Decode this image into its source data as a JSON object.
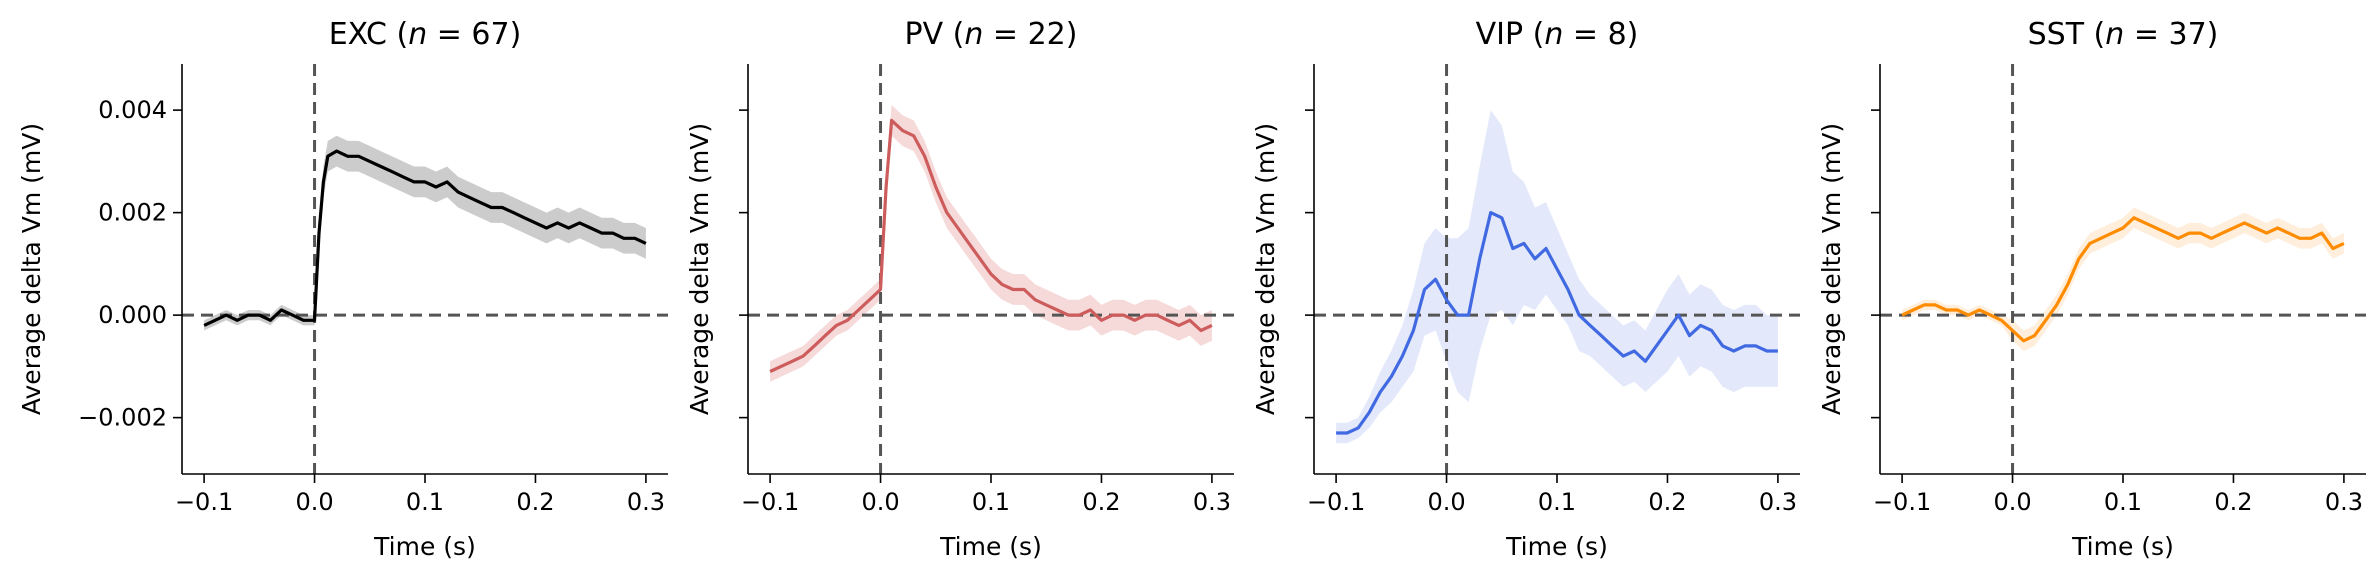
{
  "chart_data": [
    {
      "type": "line",
      "title_main": "EXC (",
      "title_n": "n",
      "title_rest": " = 67)",
      "xlabel": "Time (s)",
      "ylabel": "Average delta Vm (mV)",
      "xlim": [
        -0.12,
        0.32
      ],
      "ylim": [
        -0.0031,
        0.0049
      ],
      "xticks": [
        -0.1,
        0.0,
        0.1,
        0.2,
        0.3
      ],
      "xtick_labels": [
        "−0.1",
        "0.0",
        "0.1",
        "0.2",
        "0.3"
      ],
      "yticks": [
        -0.002,
        0.0,
        0.002,
        0.004
      ],
      "ytick_labels": [
        "−0.002",
        "0.000",
        "0.002",
        "0.004"
      ],
      "color": "#000000",
      "band_color": "#cccccc",
      "series": [
        {
          "x": [
            -0.1,
            -0.09,
            -0.08,
            -0.07,
            -0.06,
            -0.05,
            -0.04,
            -0.03,
            -0.02,
            -0.01,
            0.0,
            0.004,
            0.008,
            0.012,
            0.02,
            0.03,
            0.04,
            0.05,
            0.06,
            0.07,
            0.08,
            0.09,
            0.1,
            0.11,
            0.12,
            0.13,
            0.14,
            0.15,
            0.16,
            0.17,
            0.18,
            0.19,
            0.2,
            0.21,
            0.22,
            0.23,
            0.24,
            0.25,
            0.26,
            0.27,
            0.28,
            0.29,
            0.3
          ],
          "y": [
            -0.0002,
            -0.0001,
            0.0,
            -0.0001,
            0.0,
            0.0,
            -0.0001,
            0.0001,
            0.0,
            -0.0001,
            -0.0001,
            0.0016,
            0.0026,
            0.0031,
            0.0032,
            0.0031,
            0.0031,
            0.003,
            0.0029,
            0.0028,
            0.0027,
            0.0026,
            0.0026,
            0.0025,
            0.0026,
            0.0024,
            0.0023,
            0.0022,
            0.0021,
            0.0021,
            0.002,
            0.0019,
            0.0018,
            0.0017,
            0.0018,
            0.0017,
            0.0018,
            0.0017,
            0.0016,
            0.0016,
            0.0015,
            0.0015,
            0.0014
          ],
          "err": [
            0.0001,
            0.0001,
            0.0001,
            0.0001,
            0.0001,
            0.0001,
            0.0001,
            0.0001,
            0.0001,
            0.0001,
            0.0001,
            0.0002,
            0.0003,
            0.0003,
            0.0003,
            0.0003,
            0.0003,
            0.0003,
            0.0003,
            0.0003,
            0.0003,
            0.0003,
            0.0003,
            0.0003,
            0.0003,
            0.0003,
            0.0003,
            0.0003,
            0.0003,
            0.0003,
            0.0003,
            0.0003,
            0.0003,
            0.0003,
            0.0003,
            0.0003,
            0.0003,
            0.0003,
            0.0003,
            0.0003,
            0.0003,
            0.0003,
            0.0003
          ]
        }
      ]
    },
    {
      "type": "line",
      "title_main": "PV (",
      "title_n": "n",
      "title_rest": " = 22)",
      "xlabel": "Time (s)",
      "ylabel": "Average delta Vm (mV)",
      "xlim": [
        -0.12,
        0.32
      ],
      "ylim": [
        -0.0031,
        0.0049
      ],
      "xticks": [
        -0.1,
        0.0,
        0.1,
        0.2,
        0.3
      ],
      "xtick_labels": [
        "−0.1",
        "0.0",
        "0.1",
        "0.2",
        "0.3"
      ],
      "yticks": [
        -0.002,
        0.0,
        0.002,
        0.004
      ],
      "ytick_labels": [
        "",
        "",
        "",
        ""
      ],
      "color": "#cd5c5c",
      "band_color": "#f6d9d9",
      "series": [
        {
          "x": [
            -0.1,
            -0.09,
            -0.08,
            -0.07,
            -0.06,
            -0.05,
            -0.04,
            -0.03,
            -0.02,
            -0.01,
            0.0,
            0.005,
            0.01,
            0.02,
            0.03,
            0.04,
            0.05,
            0.06,
            0.07,
            0.08,
            0.09,
            0.1,
            0.11,
            0.12,
            0.13,
            0.14,
            0.15,
            0.16,
            0.17,
            0.18,
            0.19,
            0.2,
            0.21,
            0.22,
            0.23,
            0.24,
            0.25,
            0.26,
            0.27,
            0.28,
            0.29,
            0.3
          ],
          "y": [
            -0.0011,
            -0.001,
            -0.0009,
            -0.0008,
            -0.0006,
            -0.0004,
            -0.0002,
            -0.0001,
            0.0001,
            0.0003,
            0.0005,
            0.0025,
            0.0038,
            0.0036,
            0.0035,
            0.0031,
            0.0025,
            0.002,
            0.0017,
            0.0014,
            0.0011,
            0.0008,
            0.0006,
            0.0005,
            0.0005,
            0.0003,
            0.0002,
            0.0001,
            0.0,
            0.0,
            0.0001,
            -0.0001,
            0.0,
            0.0,
            -0.0001,
            0.0,
            0.0,
            -0.0001,
            -0.0002,
            -0.0001,
            -0.0003,
            -0.0002
          ],
          "err": [
            0.0002,
            0.0002,
            0.0002,
            0.0002,
            0.0002,
            0.0002,
            0.0002,
            0.0002,
            0.0002,
            0.0002,
            0.0002,
            0.0003,
            0.0003,
            0.0003,
            0.0003,
            0.0003,
            0.0003,
            0.0003,
            0.0003,
            0.0003,
            0.0003,
            0.0003,
            0.0003,
            0.0003,
            0.0003,
            0.0003,
            0.0003,
            0.0003,
            0.0003,
            0.0003,
            0.0003,
            0.0003,
            0.0003,
            0.0003,
            0.0003,
            0.0003,
            0.0003,
            0.0003,
            0.0003,
            0.0003,
            0.0003,
            0.0003
          ]
        }
      ]
    },
    {
      "type": "line",
      "title_main": "VIP (",
      "title_n": "n",
      "title_rest": " = 8)",
      "xlabel": "Time (s)",
      "ylabel": "Average delta Vm (mV)",
      "xlim": [
        -0.12,
        0.32
      ],
      "ylim": [
        -0.0031,
        0.0049
      ],
      "xticks": [
        -0.1,
        0.0,
        0.1,
        0.2,
        0.3
      ],
      "xtick_labels": [
        "−0.1",
        "0.0",
        "0.1",
        "0.2",
        "0.3"
      ],
      "yticks": [
        -0.002,
        0.0,
        0.002,
        0.004
      ],
      "ytick_labels": [
        "",
        "",
        "",
        ""
      ],
      "color": "#4169e1",
      "band_color": "#e3e9fb",
      "series": [
        {
          "x": [
            -0.1,
            -0.09,
            -0.08,
            -0.07,
            -0.06,
            -0.05,
            -0.04,
            -0.03,
            -0.02,
            -0.01,
            0.0,
            0.01,
            0.02,
            0.03,
            0.04,
            0.05,
            0.06,
            0.07,
            0.08,
            0.09,
            0.1,
            0.11,
            0.12,
            0.13,
            0.14,
            0.15,
            0.16,
            0.17,
            0.18,
            0.19,
            0.2,
            0.21,
            0.22,
            0.23,
            0.24,
            0.25,
            0.26,
            0.27,
            0.28,
            0.29,
            0.3
          ],
          "y": [
            -0.0023,
            -0.0023,
            -0.0022,
            -0.0019,
            -0.0015,
            -0.0012,
            -0.0008,
            -0.0003,
            0.0005,
            0.0007,
            0.0003,
            0.0,
            0.0,
            0.0011,
            0.002,
            0.0019,
            0.0013,
            0.0014,
            0.0011,
            0.0013,
            0.0009,
            0.0005,
            0.0,
            -0.0002,
            -0.0004,
            -0.0006,
            -0.0008,
            -0.0007,
            -0.0009,
            -0.0006,
            -0.0003,
            0.0,
            -0.0004,
            -0.0002,
            -0.0003,
            -0.0006,
            -0.0007,
            -0.0006,
            -0.0006,
            -0.0007,
            -0.0007
          ],
          "err": [
            0.0002,
            0.0002,
            0.0002,
            0.0003,
            0.0004,
            0.0005,
            0.0006,
            0.0008,
            0.0009,
            0.001,
            0.0012,
            0.0015,
            0.0017,
            0.0018,
            0.002,
            0.0018,
            0.0015,
            0.0012,
            0.001,
            0.0009,
            0.0008,
            0.0007,
            0.0007,
            0.0006,
            0.0006,
            0.0006,
            0.0006,
            0.0006,
            0.0006,
            0.0007,
            0.0008,
            0.0008,
            0.0008,
            0.0008,
            0.0008,
            0.0008,
            0.0008,
            0.0008,
            0.0008,
            0.0007,
            0.0007
          ]
        }
      ]
    },
    {
      "type": "line",
      "title_main": "SST (",
      "title_n": "n",
      "title_rest": " = 37)",
      "xlabel": "Time (s)",
      "ylabel": "Average delta Vm (mV)",
      "xlim": [
        -0.12,
        0.32
      ],
      "ylim": [
        -0.0031,
        0.0049
      ],
      "xticks": [
        -0.1,
        0.0,
        0.1,
        0.2,
        0.3
      ],
      "xtick_labels": [
        "−0.1",
        "0.0",
        "0.1",
        "0.2",
        "0.3"
      ],
      "yticks": [
        -0.002,
        0.0,
        0.002,
        0.004
      ],
      "ytick_labels": [
        "",
        "",
        "",
        ""
      ],
      "color": "#ff8c00",
      "band_color": "#feeedb",
      "series": [
        {
          "x": [
            -0.1,
            -0.09,
            -0.08,
            -0.07,
            -0.06,
            -0.05,
            -0.04,
            -0.03,
            -0.02,
            -0.01,
            0.0,
            0.01,
            0.02,
            0.03,
            0.04,
            0.05,
            0.06,
            0.07,
            0.08,
            0.09,
            0.1,
            0.11,
            0.12,
            0.13,
            0.14,
            0.15,
            0.16,
            0.17,
            0.18,
            0.19,
            0.2,
            0.21,
            0.22,
            0.23,
            0.24,
            0.25,
            0.26,
            0.27,
            0.28,
            0.29,
            0.3
          ],
          "y": [
            0.0,
            0.0001,
            0.0002,
            0.0002,
            0.0001,
            0.0001,
            0.0,
            0.0001,
            0.0,
            -0.0001,
            -0.0003,
            -0.0005,
            -0.0004,
            -0.0001,
            0.0002,
            0.0006,
            0.0011,
            0.0014,
            0.0015,
            0.0016,
            0.0017,
            0.0019,
            0.0018,
            0.0017,
            0.0016,
            0.0015,
            0.0016,
            0.0016,
            0.0015,
            0.0016,
            0.0017,
            0.0018,
            0.0017,
            0.0016,
            0.0017,
            0.0016,
            0.0015,
            0.0015,
            0.0016,
            0.0013,
            0.0014
          ],
          "err": [
            0.0001,
            0.0001,
            0.0001,
            0.0001,
            0.0001,
            0.0001,
            0.0001,
            0.0001,
            0.0001,
            0.0001,
            0.0002,
            0.0002,
            0.0002,
            0.0002,
            0.0002,
            0.0002,
            0.0002,
            0.0002,
            0.0002,
            0.0002,
            0.0002,
            0.0002,
            0.0002,
            0.0002,
            0.0002,
            0.0002,
            0.0002,
            0.0002,
            0.0002,
            0.0002,
            0.0002,
            0.0002,
            0.0002,
            0.0002,
            0.0002,
            0.0002,
            0.0002,
            0.0002,
            0.0002,
            0.0002,
            0.0002
          ]
        }
      ]
    }
  ]
}
